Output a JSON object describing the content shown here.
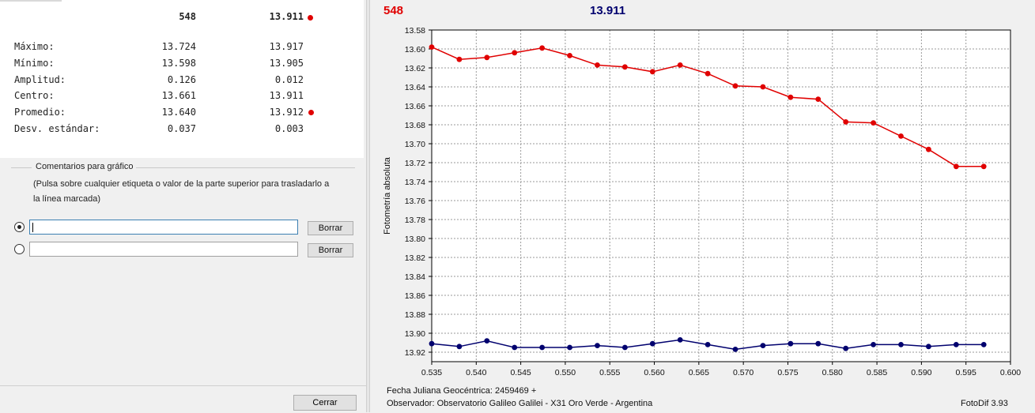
{
  "stats": {
    "header": {
      "col1": "548",
      "col2": "13.911"
    },
    "rows": [
      {
        "label": "Máximo:",
        "v1": "13.724",
        "v2": "13.917"
      },
      {
        "label": "Mínimo:",
        "v1": "13.598",
        "v2": "13.905"
      },
      {
        "label": "Amplitud:",
        "v1": "0.126",
        "v2": "0.012"
      },
      {
        "label": "Centro:",
        "v1": "13.661",
        "v2": "13.911"
      },
      {
        "label": "Promedio:",
        "v1": "13.640",
        "v2": "13.912"
      },
      {
        "label": "Desv. estándar:",
        "v1": "0.037",
        "v2": "0.003"
      }
    ]
  },
  "comments": {
    "group_title": "Comentarios para gráfico",
    "hint": "(Pulsa sobre cualquier etiqueta o valor de la parte superior para trasladarlo a la línea marcada)",
    "lines": [
      {
        "value": "",
        "selected": true,
        "clear_label": "Borrar"
      },
      {
        "value": "",
        "selected": false,
        "clear_label": "Borrar"
      }
    ]
  },
  "close_label": "Cerrar",
  "chart_header": {
    "red_label": "548",
    "blue_label": "13.911"
  },
  "footer": {
    "line1": "Fecha Juliana Geocéntrica: 2459469 +",
    "line2": "Observador: Observatorio Galileo Galilei - X31 Oro Verde - Argentina",
    "app": "FotoDif 3.93"
  },
  "colors": {
    "series_red": "#e00000",
    "series_blue": "#00006e",
    "grid": "#9a9a9a"
  },
  "chart_data": {
    "type": "line",
    "ylabel": "Fotometría absoluta",
    "xlim": [
      0.535,
      0.6
    ],
    "ylim": [
      13.58,
      13.93
    ],
    "y_inverted": true,
    "grid": true,
    "x_ticks": [
      "0.535",
      "0.540",
      "0.545",
      "0.550",
      "0.555",
      "0.560",
      "0.565",
      "0.570",
      "0.575",
      "0.580",
      "0.585",
      "0.590",
      "0.595",
      "0.600"
    ],
    "y_ticks": [
      "13.58",
      "13.60",
      "13.62",
      "13.64",
      "13.66",
      "13.68",
      "13.70",
      "13.72",
      "13.74",
      "13.76",
      "13.78",
      "13.80",
      "13.82",
      "13.84",
      "13.86",
      "13.88",
      "13.90",
      "13.92"
    ],
    "x": [
      0.535,
      0.5381,
      0.5412,
      0.5443,
      0.5474,
      0.5505,
      0.5536,
      0.5567,
      0.5598,
      0.5629,
      0.566,
      0.5691,
      0.5722,
      0.5753,
      0.5784,
      0.5815,
      0.5846,
      0.5877,
      0.5908,
      0.5939,
      0.597
    ],
    "series": [
      {
        "name": "548",
        "values": [
          13.598,
          13.611,
          13.609,
          13.604,
          13.599,
          13.607,
          13.617,
          13.619,
          13.624,
          13.617,
          13.626,
          13.639,
          13.64,
          13.651,
          13.653,
          13.677,
          13.678,
          13.692,
          13.706,
          13.724,
          13.724
        ]
      },
      {
        "name": "13.911",
        "values": [
          13.911,
          13.914,
          13.908,
          13.915,
          13.915,
          13.915,
          13.913,
          13.915,
          13.911,
          13.907,
          13.912,
          13.917,
          13.913,
          13.911,
          13.911,
          13.916,
          13.912,
          13.912,
          13.914,
          13.912,
          13.912
        ]
      }
    ]
  }
}
